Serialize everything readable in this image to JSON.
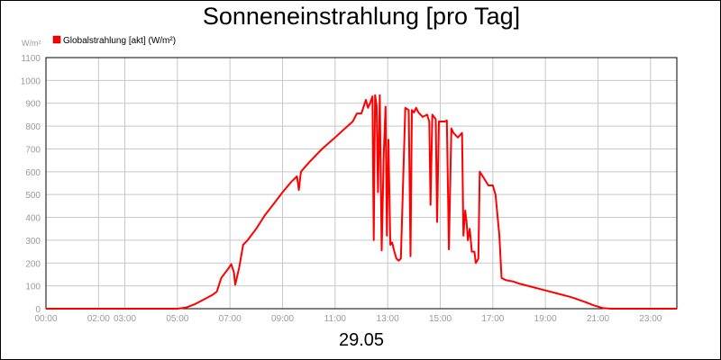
{
  "title": "Sonneneinstrahlung [pro Tag]",
  "date_label": "29.05",
  "colors": {
    "series": "#ff0000",
    "grid": "#c8c8c8",
    "axis_text": "#9a9a9a"
  },
  "chart_data": {
    "type": "line",
    "title": "Sonneneinstrahlung [pro Tag]",
    "ylabel": "W/m²",
    "xlabel": "29.05",
    "ylim": [
      0,
      1100
    ],
    "xlim": [
      0,
      24
    ],
    "y_ticks": [
      0,
      100,
      200,
      300,
      400,
      500,
      600,
      700,
      800,
      900,
      1000,
      1100
    ],
    "x_ticks": [
      {
        "t": 0,
        "label": "00:00"
      },
      {
        "t": 2,
        "label": "02:00"
      },
      {
        "t": 3,
        "label": "03:00"
      },
      {
        "t": 5,
        "label": "05:00"
      },
      {
        "t": 7,
        "label": "07:00"
      },
      {
        "t": 9,
        "label": "09:00"
      },
      {
        "t": 11,
        "label": "11:00"
      },
      {
        "t": 13,
        "label": "13:00"
      },
      {
        "t": 15,
        "label": "15:00"
      },
      {
        "t": 17,
        "label": "17:00"
      },
      {
        "t": 19,
        "label": "19:00"
      },
      {
        "t": 21,
        "label": "21:00"
      },
      {
        "t": 23,
        "label": "23:00"
      }
    ],
    "grid": true,
    "legend_position": "top-left",
    "series": [
      {
        "name": "Globalstrahlung [akt] (W/m²)",
        "points": [
          [
            0.0,
            0
          ],
          [
            5.0,
            0
          ],
          [
            5.33,
            5
          ],
          [
            5.67,
            20
          ],
          [
            6.0,
            40
          ],
          [
            6.33,
            60
          ],
          [
            6.5,
            75
          ],
          [
            6.67,
            135
          ],
          [
            6.9,
            170
          ],
          [
            7.05,
            195
          ],
          [
            7.15,
            160
          ],
          [
            7.2,
            105
          ],
          [
            7.35,
            180
          ],
          [
            7.5,
            280
          ],
          [
            7.67,
            300
          ],
          [
            8.0,
            350
          ],
          [
            8.33,
            410
          ],
          [
            8.67,
            460
          ],
          [
            9.0,
            510
          ],
          [
            9.33,
            555
          ],
          [
            9.55,
            580
          ],
          [
            9.62,
            520
          ],
          [
            9.7,
            600
          ],
          [
            10.0,
            640
          ],
          [
            10.5,
            700
          ],
          [
            11.0,
            750
          ],
          [
            11.33,
            785
          ],
          [
            11.67,
            820
          ],
          [
            11.83,
            855
          ],
          [
            12.0,
            855
          ],
          [
            12.1,
            890
          ],
          [
            12.17,
            915
          ],
          [
            12.25,
            880
          ],
          [
            12.33,
            900
          ],
          [
            12.42,
            930
          ],
          [
            12.47,
            300
          ],
          [
            12.52,
            935
          ],
          [
            12.58,
            890
          ],
          [
            12.63,
            510
          ],
          [
            12.7,
            935
          ],
          [
            12.77,
            255
          ],
          [
            12.85,
            680
          ],
          [
            12.92,
            885
          ],
          [
            12.97,
            320
          ],
          [
            13.03,
            740
          ],
          [
            13.1,
            280
          ],
          [
            13.17,
            290
          ],
          [
            13.23,
            260
          ],
          [
            13.33,
            220
          ],
          [
            13.42,
            210
          ],
          [
            13.5,
            220
          ],
          [
            13.67,
            880
          ],
          [
            13.8,
            870
          ],
          [
            13.87,
            230
          ],
          [
            13.92,
            870
          ],
          [
            14.0,
            860
          ],
          [
            14.08,
            880
          ],
          [
            14.17,
            860
          ],
          [
            14.33,
            840
          ],
          [
            14.5,
            850
          ],
          [
            14.58,
            820
          ],
          [
            14.63,
            455
          ],
          [
            14.7,
            850
          ],
          [
            14.83,
            830
          ],
          [
            14.88,
            380
          ],
          [
            14.95,
            820
          ],
          [
            15.08,
            820
          ],
          [
            15.17,
            820
          ],
          [
            15.25,
            825
          ],
          [
            15.33,
            260
          ],
          [
            15.42,
            790
          ],
          [
            15.5,
            770
          ],
          [
            15.67,
            750
          ],
          [
            15.83,
            770
          ],
          [
            15.88,
            320
          ],
          [
            15.95,
            430
          ],
          [
            16.0,
            380
          ],
          [
            16.05,
            300
          ],
          [
            16.12,
            350
          ],
          [
            16.2,
            250
          ],
          [
            16.3,
            250
          ],
          [
            16.35,
            200
          ],
          [
            16.45,
            220
          ],
          [
            16.5,
            600
          ],
          [
            16.67,
            570
          ],
          [
            16.83,
            540
          ],
          [
            17.0,
            540
          ],
          [
            17.1,
            500
          ],
          [
            17.25,
            320
          ],
          [
            17.33,
            135
          ],
          [
            17.5,
            125
          ],
          [
            17.75,
            120
          ],
          [
            18.0,
            110
          ],
          [
            18.5,
            95
          ],
          [
            19.0,
            80
          ],
          [
            19.5,
            65
          ],
          [
            20.0,
            50
          ],
          [
            20.5,
            30
          ],
          [
            20.83,
            15
          ],
          [
            21.17,
            3
          ],
          [
            21.5,
            0
          ],
          [
            24.0,
            0
          ]
        ]
      }
    ]
  }
}
